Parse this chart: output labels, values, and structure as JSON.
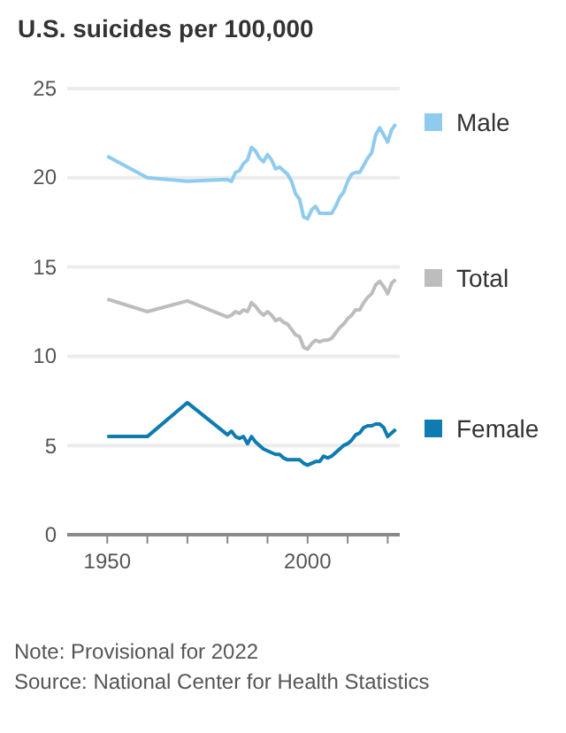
{
  "chart_data": {
    "type": "line",
    "title": "U.S. suicides per 100,000",
    "annotations": [
      "Note: Provisional for 2022",
      "Source: National Center for Health Statistics"
    ],
    "x": [
      1950,
      1960,
      1970,
      1980,
      1981,
      1982,
      1983,
      1984,
      1985,
      1986,
      1987,
      1988,
      1989,
      1990,
      1991,
      1992,
      1993,
      1994,
      1995,
      1996,
      1997,
      1998,
      1999,
      2000,
      2001,
      2002,
      2003,
      2004,
      2005,
      2006,
      2007,
      2008,
      2009,
      2010,
      2011,
      2012,
      2013,
      2014,
      2015,
      2016,
      2017,
      2018,
      2019,
      2020,
      2021,
      2022
    ],
    "series": [
      {
        "name": "Male",
        "color": "#8ecbef",
        "values": [
          21.2,
          20.0,
          19.8,
          19.9,
          19.8,
          20.3,
          20.4,
          20.8,
          21.0,
          21.7,
          21.5,
          21.1,
          20.9,
          21.3,
          21.0,
          20.5,
          20.6,
          20.4,
          20.2,
          19.8,
          19.1,
          18.8,
          17.8,
          17.7,
          18.2,
          18.4,
          18.0,
          18.0,
          18.0,
          18.0,
          18.4,
          18.9,
          19.2,
          19.8,
          20.2,
          20.3,
          20.3,
          20.7,
          21.1,
          21.4,
          22.4,
          22.8,
          22.4,
          22.0,
          22.7,
          23.0
        ]
      },
      {
        "name": "Total",
        "color": "#bdbdbd",
        "values": [
          13.2,
          12.5,
          13.1,
          12.2,
          12.3,
          12.5,
          12.4,
          12.6,
          12.5,
          13.0,
          12.8,
          12.5,
          12.3,
          12.5,
          12.3,
          12.0,
          12.1,
          11.9,
          11.8,
          11.5,
          11.2,
          11.1,
          10.5,
          10.4,
          10.7,
          10.9,
          10.8,
          10.9,
          10.9,
          11.0,
          11.3,
          11.6,
          11.8,
          12.1,
          12.3,
          12.6,
          12.6,
          13.0,
          13.3,
          13.5,
          14.0,
          14.2,
          13.9,
          13.5,
          14.1,
          14.3
        ]
      },
      {
        "name": "Female",
        "color": "#0e7cb0",
        "values": [
          5.5,
          5.5,
          7.4,
          5.6,
          5.8,
          5.5,
          5.4,
          5.5,
          5.1,
          5.5,
          5.2,
          5.0,
          4.8,
          4.7,
          4.6,
          4.5,
          4.5,
          4.3,
          4.2,
          4.2,
          4.2,
          4.2,
          4.0,
          3.9,
          4.0,
          4.1,
          4.1,
          4.4,
          4.3,
          4.4,
          4.6,
          4.8,
          5.0,
          5.1,
          5.3,
          5.6,
          5.7,
          6.0,
          6.1,
          6.1,
          6.2,
          6.2,
          6.0,
          5.5,
          5.7,
          5.9
        ]
      }
    ],
    "xlim": [
      1940,
      2023
    ],
    "xticks": [
      1950,
      {
        "value": 1960,
        "label": null
      },
      {
        "value": 1970,
        "label": null
      },
      {
        "value": 1980,
        "label": null
      },
      {
        "value": 1990,
        "label": null
      },
      2000,
      {
        "value": 2010,
        "label": null
      },
      {
        "value": 2020,
        "label": null
      }
    ],
    "ylim": [
      0,
      25
    ],
    "yticks": [
      0,
      5,
      10,
      15,
      20,
      25
    ],
    "grid": "y",
    "legend": "right",
    "marker": "none",
    "line_style": "solid"
  }
}
